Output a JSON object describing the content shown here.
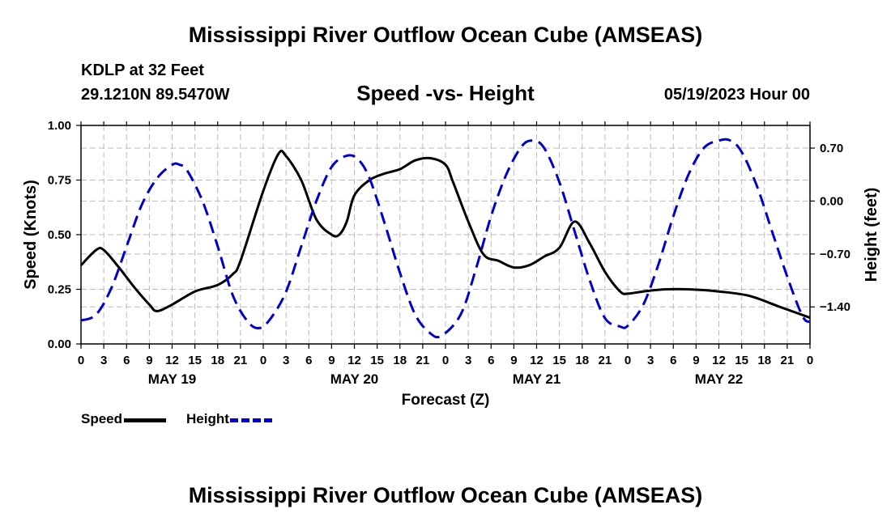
{
  "header": {
    "title": "Mississippi River Outflow Ocean Cube (AMSEAS)",
    "station": "KDLP at 32 Feet",
    "coords": "29.1210N  89.5470W",
    "subtitle": "Speed -vs- Height",
    "date": "05/19/2023 Hour 00"
  },
  "footer": {
    "title": "Mississippi River Outflow Ocean Cube (AMSEAS)"
  },
  "legend": {
    "speed_label": "Speed",
    "height_label": "Height"
  },
  "colors": {
    "speed": "#000000",
    "height": "#0000cc",
    "grid": "#bbbbbb"
  },
  "chart_data": {
    "type": "line",
    "title": "Speed -vs- Height",
    "xlabel": "Forecast (Z)",
    "ylabel_left": "Speed (Knots)",
    "ylabel_right": "Height (feet)",
    "x_range": [
      0,
      96
    ],
    "x_ticks": [
      0,
      3,
      6,
      9,
      12,
      15,
      18,
      21,
      24,
      27,
      30,
      33,
      36,
      39,
      42,
      45,
      48,
      51,
      54,
      57,
      60,
      63,
      66,
      69,
      72,
      75,
      78,
      81,
      84,
      87,
      90,
      93,
      96
    ],
    "x_tick_labels": [
      "0",
      "3",
      "6",
      "9",
      "12",
      "15",
      "18",
      "21",
      "0",
      "3",
      "6",
      "9",
      "12",
      "15",
      "18",
      "21",
      "0",
      "3",
      "6",
      "9",
      "12",
      "15",
      "18",
      "21",
      "0",
      "3",
      "6",
      "9",
      "12",
      "15",
      "18",
      "21",
      "0"
    ],
    "day_labels": [
      {
        "hour": 12,
        "label": "MAY 19"
      },
      {
        "hour": 36,
        "label": "MAY 20"
      },
      {
        "hour": 60,
        "label": "MAY 21"
      },
      {
        "hour": 84,
        "label": "MAY 22"
      }
    ],
    "left_axis": {
      "range": [
        0,
        1
      ],
      "ticks": [
        0,
        0.25,
        0.5,
        0.75,
        1.0
      ],
      "tick_labels": [
        "0.00",
        "0.25",
        "0.50",
        "0.75",
        "1.00"
      ]
    },
    "right_axis": {
      "range": [
        -1.89,
        1.0
      ],
      "ticks": [
        -1.4,
        -0.7,
        0.0,
        0.7
      ],
      "tick_labels": [
        "−1.40",
        "−0.70",
        "0.00",
        "0.70"
      ]
    },
    "grid": true,
    "series": [
      {
        "name": "Speed",
        "axis": "left",
        "style": "solid",
        "x": [
          0,
          2,
          3,
          5,
          7,
          9,
          10,
          12,
          15,
          18,
          20,
          21,
          24,
          26,
          27,
          29,
          31,
          33,
          34,
          35,
          36,
          38,
          40,
          42,
          44,
          46,
          48,
          49,
          51,
          53,
          55,
          57,
          59,
          61,
          63,
          65,
          67,
          69,
          71,
          72,
          74,
          77,
          80,
          84,
          88,
          92,
          96
        ],
        "values": [
          0.36,
          0.43,
          0.43,
          0.35,
          0.26,
          0.18,
          0.15,
          0.18,
          0.24,
          0.27,
          0.32,
          0.38,
          0.7,
          0.87,
          0.86,
          0.75,
          0.57,
          0.5,
          0.5,
          0.56,
          0.68,
          0.75,
          0.78,
          0.8,
          0.84,
          0.85,
          0.82,
          0.74,
          0.56,
          0.41,
          0.38,
          0.35,
          0.36,
          0.4,
          0.44,
          0.56,
          0.46,
          0.33,
          0.24,
          0.23,
          0.24,
          0.25,
          0.25,
          0.24,
          0.22,
          0.17,
          0.12
        ]
      },
      {
        "name": "Height",
        "axis": "right",
        "style": "dashed",
        "x": [
          0,
          2,
          4,
          6,
          8,
          10,
          12,
          13,
          14,
          16,
          18,
          20,
          22,
          23.5,
          25,
          27,
          29,
          31,
          33,
          35,
          36.5,
          38,
          40,
          42,
          44,
          46,
          47.5,
          50,
          52,
          54,
          56,
          58,
          59.5,
          61,
          63,
          65,
          67,
          69,
          71,
          72,
          74,
          76,
          78,
          80,
          82,
          84,
          85.5,
          87,
          89,
          91,
          93,
          95,
          96
        ],
        "values": [
          -1.58,
          -1.5,
          -1.15,
          -0.6,
          -0.05,
          0.3,
          0.48,
          0.48,
          0.4,
          0.0,
          -0.6,
          -1.25,
          -1.6,
          -1.68,
          -1.55,
          -1.2,
          -0.6,
          0.0,
          0.45,
          0.6,
          0.55,
          0.3,
          -0.3,
          -0.95,
          -1.5,
          -1.75,
          -1.78,
          -1.5,
          -0.9,
          -0.2,
          0.35,
          0.72,
          0.8,
          0.7,
          0.25,
          -0.4,
          -1.05,
          -1.55,
          -1.66,
          -1.65,
          -1.38,
          -0.85,
          -0.2,
          0.35,
          0.7,
          0.8,
          0.8,
          0.65,
          0.2,
          -0.4,
          -1.0,
          -1.52,
          -1.6
        ]
      }
    ]
  }
}
